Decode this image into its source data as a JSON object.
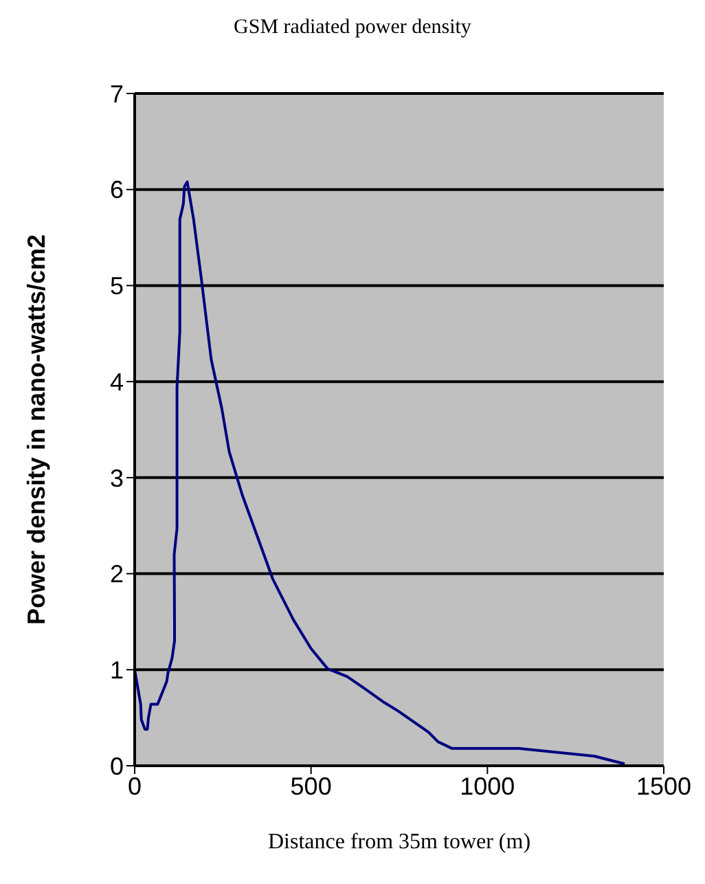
{
  "chart_data": {
    "type": "line",
    "title": "GSM radiated power density",
    "xlabel": "Distance from 35m tower (m)",
    "ylabel": "Power density in nano-watts/cm2",
    "x": [
      0,
      17,
      19,
      29,
      36,
      39,
      46,
      65,
      91,
      94,
      106,
      113,
      113,
      112,
      120,
      120,
      128,
      128,
      138,
      141,
      149,
      167,
      188,
      217,
      247,
      268,
      305,
      392,
      450,
      500,
      547,
      602,
      653,
      707,
      747,
      833,
      860,
      900,
      1091,
      1303,
      1389
    ],
    "series": [
      {
        "color": "#000080",
        "values": [
          1.0,
          0.64,
          0.48,
          0.38,
          0.38,
          0.5,
          0.64,
          0.64,
          0.88,
          0.96,
          1.12,
          1.3,
          1.5,
          2.2,
          2.47,
          3.94,
          4.52,
          5.69,
          5.85,
          6.03,
          6.08,
          5.69,
          5.1,
          4.23,
          3.72,
          3.27,
          2.82,
          1.94,
          1.52,
          1.22,
          1.01,
          0.93,
          0.8,
          0.66,
          0.57,
          0.35,
          0.25,
          0.18,
          0.18,
          0.1,
          0.02
        ]
      }
    ],
    "xlim": [
      0,
      1500
    ],
    "xticks": [
      0,
      500,
      1000,
      1500
    ],
    "ylim": [
      0,
      7
    ],
    "yticks": [
      0,
      1,
      2,
      3,
      4,
      5,
      6,
      7
    ],
    "grid": "y",
    "marker": "none",
    "line_style": "solid"
  }
}
